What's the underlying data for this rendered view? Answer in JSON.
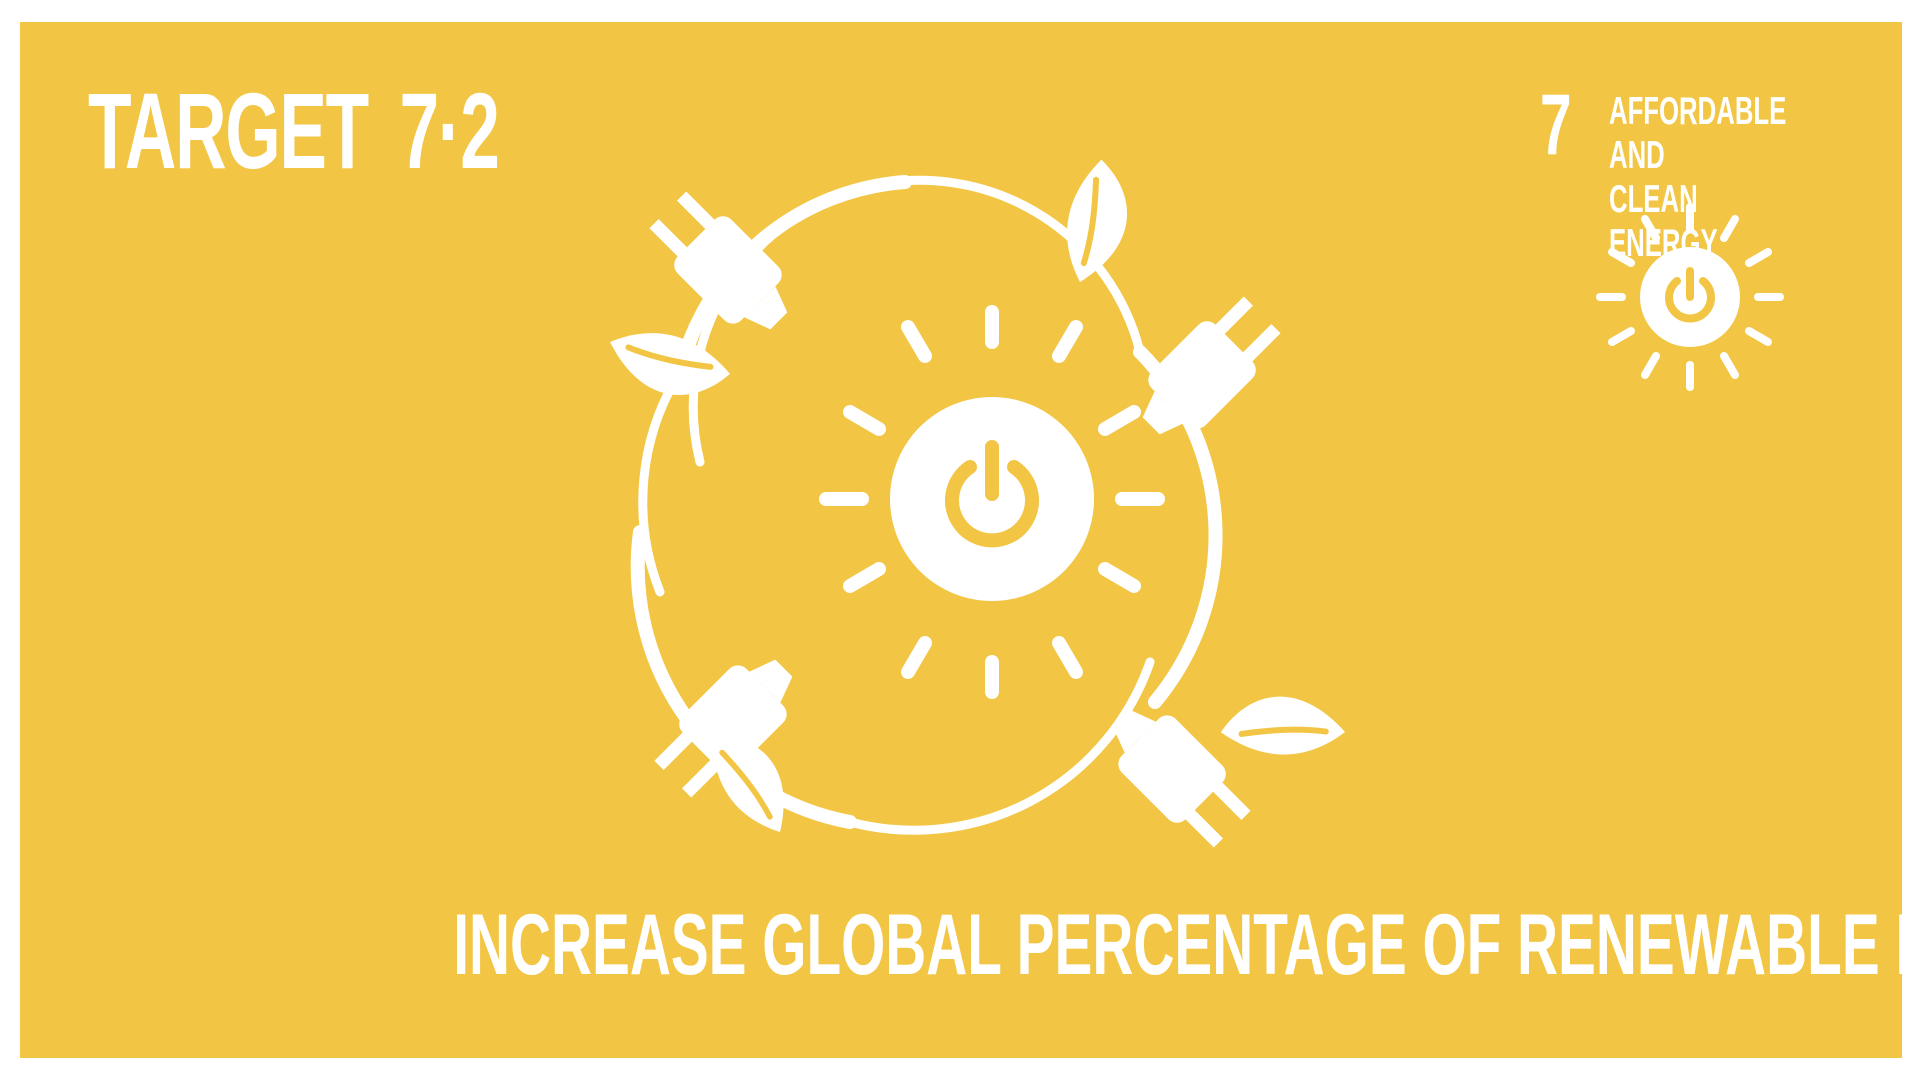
{
  "colors": {
    "background": "#F2C644",
    "foreground": "#FFFFFF"
  },
  "header": {
    "label": "TARGET",
    "target_number": "7·2"
  },
  "goal": {
    "number": "7",
    "title": "AFFORDABLE AND\nCLEAN ENERGY",
    "icon": "sun-power-icon"
  },
  "illustration": {
    "icon": "renewable-energy-cycle-icon"
  },
  "caption": "INCREASE GLOBAL PERCENTAGE OF RENEWABLE ENERGY"
}
